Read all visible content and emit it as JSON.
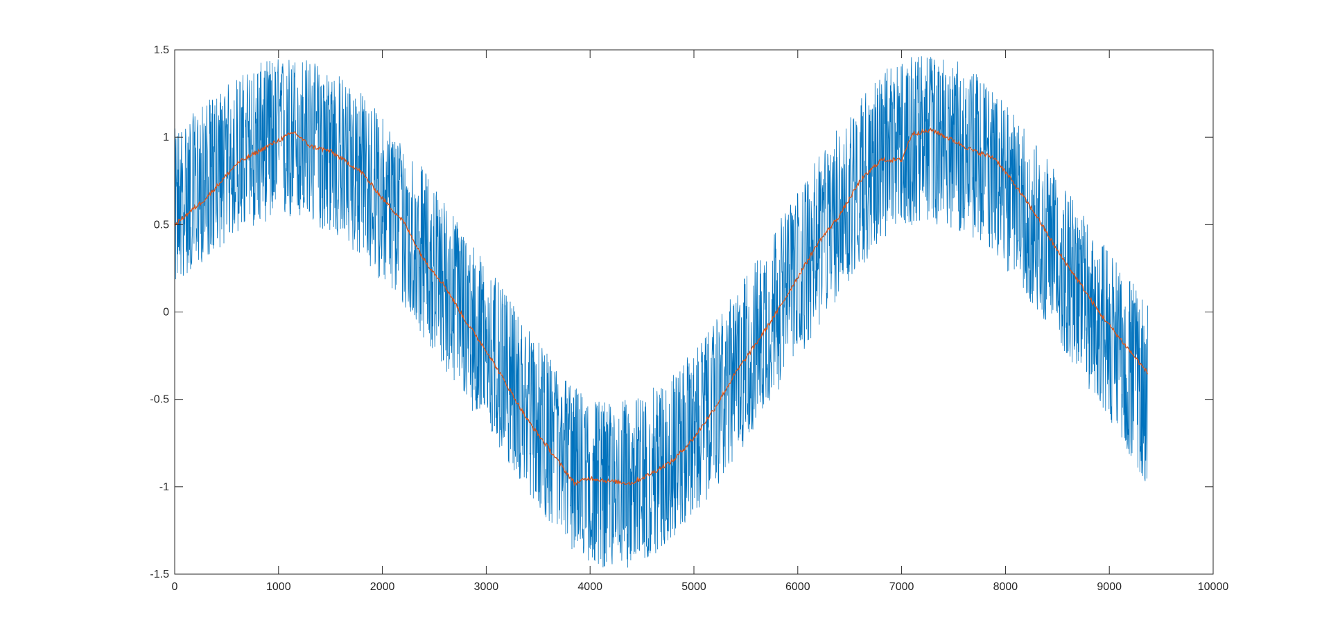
{
  "chart_data": {
    "type": "line",
    "title": "",
    "xlabel": "",
    "ylabel": "",
    "xlim": [
      0,
      10000
    ],
    "ylim": [
      -1.5,
      1.5
    ],
    "x_ticks": [
      0,
      1000,
      2000,
      3000,
      4000,
      5000,
      6000,
      7000,
      8000,
      9000,
      10000
    ],
    "x_tick_labels": [
      "0",
      "1000",
      "2000",
      "3000",
      "4000",
      "5000",
      "6000",
      "7000",
      "8000",
      "9000",
      "10000"
    ],
    "y_ticks": [
      -1.5,
      -1,
      -0.5,
      0,
      0.5,
      1,
      1.5
    ],
    "y_tick_labels": [
      "-1.5",
      "-1",
      "-0.5",
      "0",
      "0.5",
      "1",
      "1.5"
    ],
    "grid": false,
    "legend": "none",
    "series": [
      {
        "color": "#0072BD",
        "style": "noisy",
        "x": [
          0,
          300,
          600,
          900,
          1200,
          1500,
          1800,
          2100,
          2400,
          2700,
          3000,
          3300,
          3600,
          3900,
          4200,
          4500,
          4800,
          5100,
          5400,
          5700,
          6000,
          6300,
          6600,
          6900,
          7200,
          7500,
          7800,
          8100,
          8400,
          8700,
          9000,
          9370
        ],
        "center": [
          0.55,
          0.72,
          0.86,
          0.98,
          0.99,
          0.93,
          0.78,
          0.58,
          0.35,
          0.08,
          -0.2,
          -0.47,
          -0.72,
          -0.92,
          -1.0,
          -0.96,
          -0.82,
          -0.62,
          -0.35,
          -0.07,
          0.22,
          0.5,
          0.75,
          0.93,
          1.0,
          0.97,
          0.85,
          0.65,
          0.4,
          0.12,
          -0.12,
          -0.38
        ],
        "envelope_min": [
          0.15,
          0.3,
          0.45,
          0.52,
          0.52,
          0.45,
          0.3,
          0.1,
          -0.15,
          -0.42,
          -0.68,
          -0.95,
          -1.2,
          -1.42,
          -1.48,
          -1.45,
          -1.3,
          -1.1,
          -0.85,
          -0.55,
          -0.28,
          0.0,
          0.25,
          0.45,
          0.52,
          0.48,
          0.38,
          0.18,
          -0.08,
          -0.35,
          -0.62,
          -1.0
        ],
        "envelope_max": [
          1.05,
          1.2,
          1.35,
          1.45,
          1.47,
          1.4,
          1.26,
          1.05,
          0.82,
          0.55,
          0.28,
          0.0,
          -0.25,
          -0.45,
          -0.52,
          -0.48,
          -0.35,
          -0.15,
          0.12,
          0.4,
          0.7,
          0.98,
          1.24,
          1.42,
          1.48,
          1.45,
          1.33,
          1.12,
          0.88,
          0.6,
          0.35,
          0.05
        ]
      },
      {
        "color": "#D95319",
        "style": "smooth",
        "x": [
          0,
          100,
          300,
          600,
          900,
          1150,
          1300,
          1500,
          1800,
          2000,
          2200,
          2400,
          2600,
          2800,
          3000,
          3200,
          3400,
          3600,
          3850,
          4000,
          4200,
          4400,
          4600,
          4800,
          5000,
          5200,
          5400,
          5600,
          5800,
          6000,
          6200,
          6400,
          6600,
          6800,
          7000,
          7100,
          7300,
          7500,
          7700,
          7900,
          8100,
          8300,
          8500,
          8700,
          8900,
          9100,
          9370
        ],
        "y": [
          0.5,
          0.55,
          0.65,
          0.85,
          0.95,
          1.03,
          0.95,
          0.92,
          0.8,
          0.65,
          0.52,
          0.3,
          0.15,
          -0.05,
          -0.22,
          -0.42,
          -0.62,
          -0.78,
          -0.98,
          -0.95,
          -0.97,
          -0.98,
          -0.92,
          -0.85,
          -0.72,
          -0.55,
          -0.35,
          -0.18,
          0.0,
          0.2,
          0.4,
          0.55,
          0.75,
          0.87,
          0.87,
          1.02,
          1.04,
          0.98,
          0.92,
          0.88,
          0.72,
          0.55,
          0.35,
          0.18,
          0.0,
          -0.15,
          -0.35
        ]
      }
    ]
  }
}
